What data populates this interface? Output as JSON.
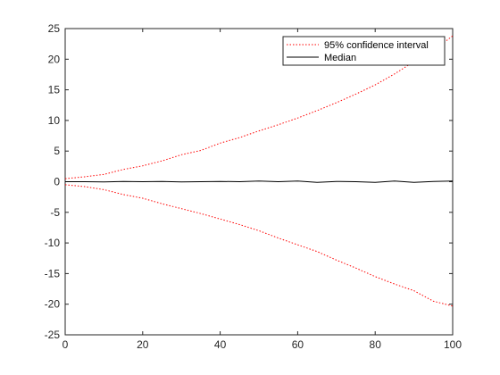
{
  "chart_data": {
    "type": "line",
    "xlim": [
      0,
      100
    ],
    "ylim": [
      -25,
      25
    ],
    "x_ticks": [
      0,
      20,
      40,
      60,
      80,
      100
    ],
    "y_ticks": [
      25,
      20,
      15,
      10,
      5,
      0,
      -5,
      -10,
      -15,
      -20,
      -25
    ],
    "grid": false,
    "legend_position": "top-right",
    "x": [
      0,
      5,
      10,
      15,
      20,
      25,
      30,
      35,
      40,
      45,
      50,
      55,
      60,
      65,
      70,
      75,
      80,
      85,
      90,
      95,
      100
    ],
    "series": [
      {
        "name": "95% confidence interval",
        "color": "#ff0000",
        "style": "dotted",
        "band_upper": [
          0.5,
          0.8,
          1.2,
          2.0,
          2.6,
          3.4,
          4.4,
          5.1,
          6.3,
          7.2,
          8.3,
          9.3,
          10.4,
          11.6,
          12.9,
          14.3,
          15.8,
          17.6,
          19.6,
          21.4,
          23.8
        ],
        "band_lower": [
          -0.5,
          -0.8,
          -1.3,
          -2.1,
          -2.7,
          -3.6,
          -4.4,
          -5.2,
          -6.1,
          -7.0,
          -8.0,
          -9.2,
          -10.3,
          -11.4,
          -12.8,
          -14.1,
          -15.5,
          -16.7,
          -17.8,
          -19.5,
          -20.3
        ]
      },
      {
        "name": "Median",
        "color": "#000000",
        "style": "solid",
        "values": [
          0.0,
          0.0,
          -0.05,
          0.05,
          0.0,
          0.05,
          -0.05,
          0.0,
          0.05,
          0.0,
          0.1,
          0.0,
          0.1,
          -0.1,
          0.05,
          0.0,
          -0.1,
          0.1,
          -0.1,
          0.05,
          0.1
        ]
      }
    ]
  }
}
